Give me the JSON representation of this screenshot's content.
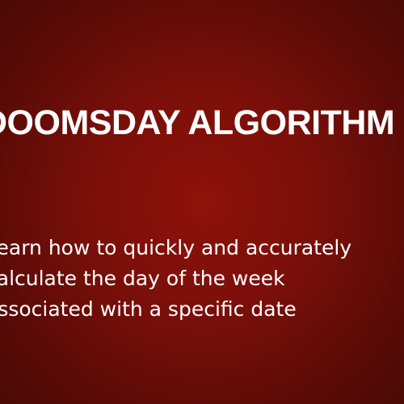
{
  "slide": {
    "title": "DOOMSDAY ALGORITHM",
    "subtitle_lines": [
      "Learn how to quickly and accurately",
      "calculate the day of the week",
      "associated with a specific date"
    ],
    "colors": {
      "background_center": "#8e120a",
      "background_edge": "#4a0905",
      "text": "#ffffff"
    }
  }
}
